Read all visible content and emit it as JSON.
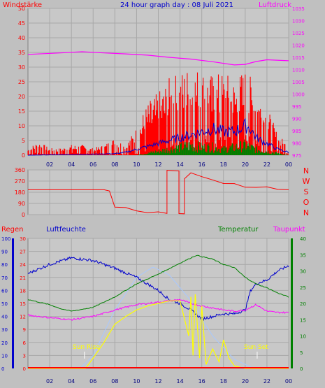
{
  "title": "24 hour graph day : 08 Juli 2021",
  "colors": {
    "background": "#c0c0c0",
    "plot_bg": "#c8c8c8",
    "grid": "#a8a8a8",
    "wind": "#ff0000",
    "gust": "#0000cc",
    "wind_green": "#008000",
    "pressure": "#ff00ff",
    "direction": "#ff0000",
    "rain": "#ff0000",
    "humidity": "#0000cc",
    "temperature": "#008000",
    "dewpoint": "#ff00ff",
    "solar": "#ffff00",
    "solar_theory": "#a8c8ff",
    "sun_marker": "#ffff00"
  },
  "x_axis": {
    "ticks": [
      "02",
      "04",
      "06",
      "08",
      "10",
      "12",
      "14",
      "16",
      "18",
      "20",
      "22",
      "00"
    ]
  },
  "panel1": {
    "left_label": "Windstärke",
    "right_label": "Luftdruck",
    "left_ticks": [
      "0",
      "5",
      "10",
      "15",
      "20",
      "25",
      "30",
      "35",
      "40",
      "45",
      "50"
    ],
    "right_ticks": [
      "975",
      "980",
      "985",
      "990",
      "995",
      "1000",
      "1005",
      "1010",
      "1015",
      "1020",
      "1025",
      "1030",
      "1035"
    ]
  },
  "panel2": {
    "left_ticks": [
      "0",
      "90",
      "180",
      "270",
      "360"
    ],
    "right_ticks": [
      "N",
      "W",
      "S",
      "O",
      "N"
    ]
  },
  "panel3": {
    "rain_label": "Regen",
    "humidity_label": "Luftfeuchte",
    "temperature_label": "Temperatur",
    "dewpoint_label": "Taupunkt",
    "rain_ticks": [
      "0",
      "10",
      "20",
      "30",
      "40",
      "50",
      "60",
      "70",
      "80",
      "90",
      "100"
    ],
    "humidity_ticks": [
      "0",
      "3",
      "6",
      "9",
      "12",
      "15",
      "18",
      "21",
      "24",
      "27",
      "30"
    ],
    "temperature_ticks": [
      "0",
      "5",
      "10",
      "15",
      "20",
      "25",
      "30",
      "35",
      "40"
    ],
    "sunrise_label": "Sun Rise",
    "sunset_label": "Sun Set"
  },
  "chart_data": [
    {
      "type": "bar",
      "title": "24 hour graph day : 08 Juli 2021",
      "ylabel": "Windstärke",
      "y2label": "Luftdruck",
      "xlim": [
        0,
        24
      ],
      "ylim": [
        0,
        50
      ],
      "y2lim": [
        975,
        1035
      ],
      "grid": true,
      "wind_envelope": [
        [
          0,
          2
        ],
        [
          1,
          4
        ],
        [
          2,
          2
        ],
        [
          3,
          2
        ],
        [
          4,
          3
        ],
        [
          5,
          3
        ],
        [
          6,
          2
        ],
        [
          7,
          3
        ],
        [
          8,
          5
        ],
        [
          9,
          3
        ],
        [
          10,
          8
        ],
        [
          11,
          15
        ],
        [
          12,
          18
        ],
        [
          13,
          22
        ],
        [
          14,
          24
        ],
        [
          15,
          26
        ],
        [
          16,
          25
        ],
        [
          17,
          23
        ],
        [
          18,
          24
        ],
        [
          19,
          22
        ],
        [
          20,
          25
        ],
        [
          21,
          20
        ],
        [
          22,
          14
        ],
        [
          23,
          6
        ],
        [
          24,
          3
        ]
      ],
      "gust_line": [
        [
          0,
          0
        ],
        [
          8,
          0.5
        ],
        [
          9,
          1
        ],
        [
          10,
          2
        ],
        [
          11,
          3
        ],
        [
          12,
          4
        ],
        [
          13,
          5
        ],
        [
          14,
          6
        ],
        [
          15,
          7
        ],
        [
          16,
          8
        ],
        [
          17,
          9
        ],
        [
          18,
          8
        ],
        [
          19,
          8
        ],
        [
          20,
          10
        ],
        [
          20.5,
          9
        ],
        [
          21,
          6
        ],
        [
          22,
          4
        ],
        [
          23,
          2
        ],
        [
          24,
          1
        ]
      ],
      "green_envelope": [
        [
          0,
          0
        ],
        [
          10,
          0
        ],
        [
          11,
          1
        ],
        [
          12,
          2
        ],
        [
          13,
          3
        ],
        [
          14,
          4
        ],
        [
          15,
          5
        ],
        [
          16,
          4
        ],
        [
          17,
          4
        ],
        [
          18,
          3
        ],
        [
          19,
          4
        ],
        [
          20,
          5
        ],
        [
          21,
          3
        ],
        [
          22,
          2
        ],
        [
          23,
          1
        ],
        [
          24,
          0
        ]
      ],
      "pressure_line": [
        [
          0,
          1016.2
        ],
        [
          3,
          1016.8
        ],
        [
          5,
          1017.3
        ],
        [
          7,
          1016.8
        ],
        [
          9,
          1016.4
        ],
        [
          11,
          1015.9
        ],
        [
          13,
          1015.0
        ],
        [
          15,
          1014.3
        ],
        [
          17,
          1013.2
        ],
        [
          19,
          1011.9
        ],
        [
          20,
          1012.1
        ],
        [
          21,
          1013.3
        ],
        [
          22,
          1014.0
        ],
        [
          24,
          1013.6
        ]
      ]
    },
    {
      "type": "line",
      "ylabel": "",
      "ylim": [
        0,
        360
      ],
      "xlim": [
        0,
        24
      ],
      "direction_line": [
        [
          0,
          200
        ],
        [
          7,
          200
        ],
        [
          7.5,
          190
        ],
        [
          8,
          55
        ],
        [
          9,
          60
        ],
        [
          10,
          40
        ],
        [
          11,
          20
        ],
        [
          12,
          15
        ],
        [
          12.8,
          10
        ],
        [
          12.8,
          350
        ],
        [
          13.9,
          350
        ],
        [
          13.9,
          0
        ],
        [
          14.4,
          0
        ],
        [
          14.4,
          280
        ],
        [
          15,
          330
        ],
        [
          16,
          300
        ],
        [
          17,
          285
        ],
        [
          18,
          250
        ],
        [
          19,
          240
        ],
        [
          20,
          230
        ],
        [
          21,
          220
        ],
        [
          22,
          215
        ],
        [
          23,
          200
        ],
        [
          24,
          200
        ]
      ]
    },
    {
      "type": "line",
      "ylim": [
        0,
        100
      ],
      "y2lim": [
        0,
        40
      ],
      "xlim": [
        0,
        24
      ],
      "humidity_line": [
        [
          0,
          73
        ],
        [
          2,
          80
        ],
        [
          4,
          85
        ],
        [
          6,
          83
        ],
        [
          8,
          77
        ],
        [
          10,
          70
        ],
        [
          12,
          60
        ],
        [
          13,
          53
        ],
        [
          14,
          50
        ],
        [
          15,
          45
        ],
        [
          16,
          38
        ],
        [
          17,
          40
        ],
        [
          18,
          42
        ],
        [
          19,
          42
        ],
        [
          20,
          45
        ],
        [
          20.5,
          60
        ],
        [
          21,
          65
        ],
        [
          22,
          68
        ],
        [
          23,
          75
        ],
        [
          24,
          79
        ]
      ],
      "temperature_line": [
        [
          0,
          21.2
        ],
        [
          2,
          19.6
        ],
        [
          3,
          18.4
        ],
        [
          4,
          17.6
        ],
        [
          6,
          18.8
        ],
        [
          8,
          22
        ],
        [
          10,
          26
        ],
        [
          12,
          29
        ],
        [
          14,
          32.4
        ],
        [
          15.5,
          34.8
        ],
        [
          16,
          34.4
        ],
        [
          17,
          33.6
        ],
        [
          18,
          32
        ],
        [
          19,
          31
        ],
        [
          20,
          28
        ],
        [
          21,
          26
        ],
        [
          22,
          24.8
        ],
        [
          23,
          23.2
        ],
        [
          24,
          22
        ]
      ],
      "dewpoint_line": [
        [
          0,
          16.4
        ],
        [
          2,
          15.6
        ],
        [
          4,
          15
        ],
        [
          6,
          16
        ],
        [
          8,
          18
        ],
        [
          10,
          19.6
        ],
        [
          12,
          20.4
        ],
        [
          14,
          21.2
        ],
        [
          15,
          20
        ],
        [
          16,
          19.2
        ],
        [
          18,
          18
        ],
        [
          19,
          17.6
        ],
        [
          20,
          18
        ],
        [
          21,
          19.6
        ],
        [
          22,
          17.6
        ],
        [
          23,
          17.2
        ],
        [
          24,
          17.2
        ]
      ],
      "solar_line": [
        [
          0,
          0
        ],
        [
          4,
          0
        ],
        [
          5.3,
          0
        ],
        [
          6,
          8
        ],
        [
          7,
          20
        ],
        [
          8,
          34
        ],
        [
          9,
          40
        ],
        [
          10,
          45
        ],
        [
          11,
          48
        ],
        [
          12,
          50
        ],
        [
          13,
          52
        ],
        [
          14,
          52
        ],
        [
          14.8,
          25
        ],
        [
          15,
          55
        ],
        [
          15.2,
          10
        ],
        [
          15.4,
          57
        ],
        [
          15.8,
          8
        ],
        [
          16,
          48
        ],
        [
          16.4,
          3
        ],
        [
          17,
          15
        ],
        [
          17.6,
          5
        ],
        [
          18,
          22
        ],
        [
          18.5,
          8
        ],
        [
          19,
          2
        ],
        [
          20,
          0
        ],
        [
          21,
          0
        ],
        [
          24,
          0
        ]
      ],
      "solar_theory_line": [
        [
          4.8,
          0
        ],
        [
          6,
          10
        ],
        [
          8,
          45
        ],
        [
          10,
          70
        ],
        [
          11.5,
          78
        ],
        [
          13,
          72
        ],
        [
          15,
          52
        ],
        [
          17,
          25
        ],
        [
          19,
          7
        ],
        [
          20.8,
          0
        ]
      ],
      "rain_line": [
        [
          0,
          0
        ],
        [
          24,
          0
        ]
      ],
      "sunrise_hour": 5.2,
      "sunset_hour": 21.1
    }
  ]
}
